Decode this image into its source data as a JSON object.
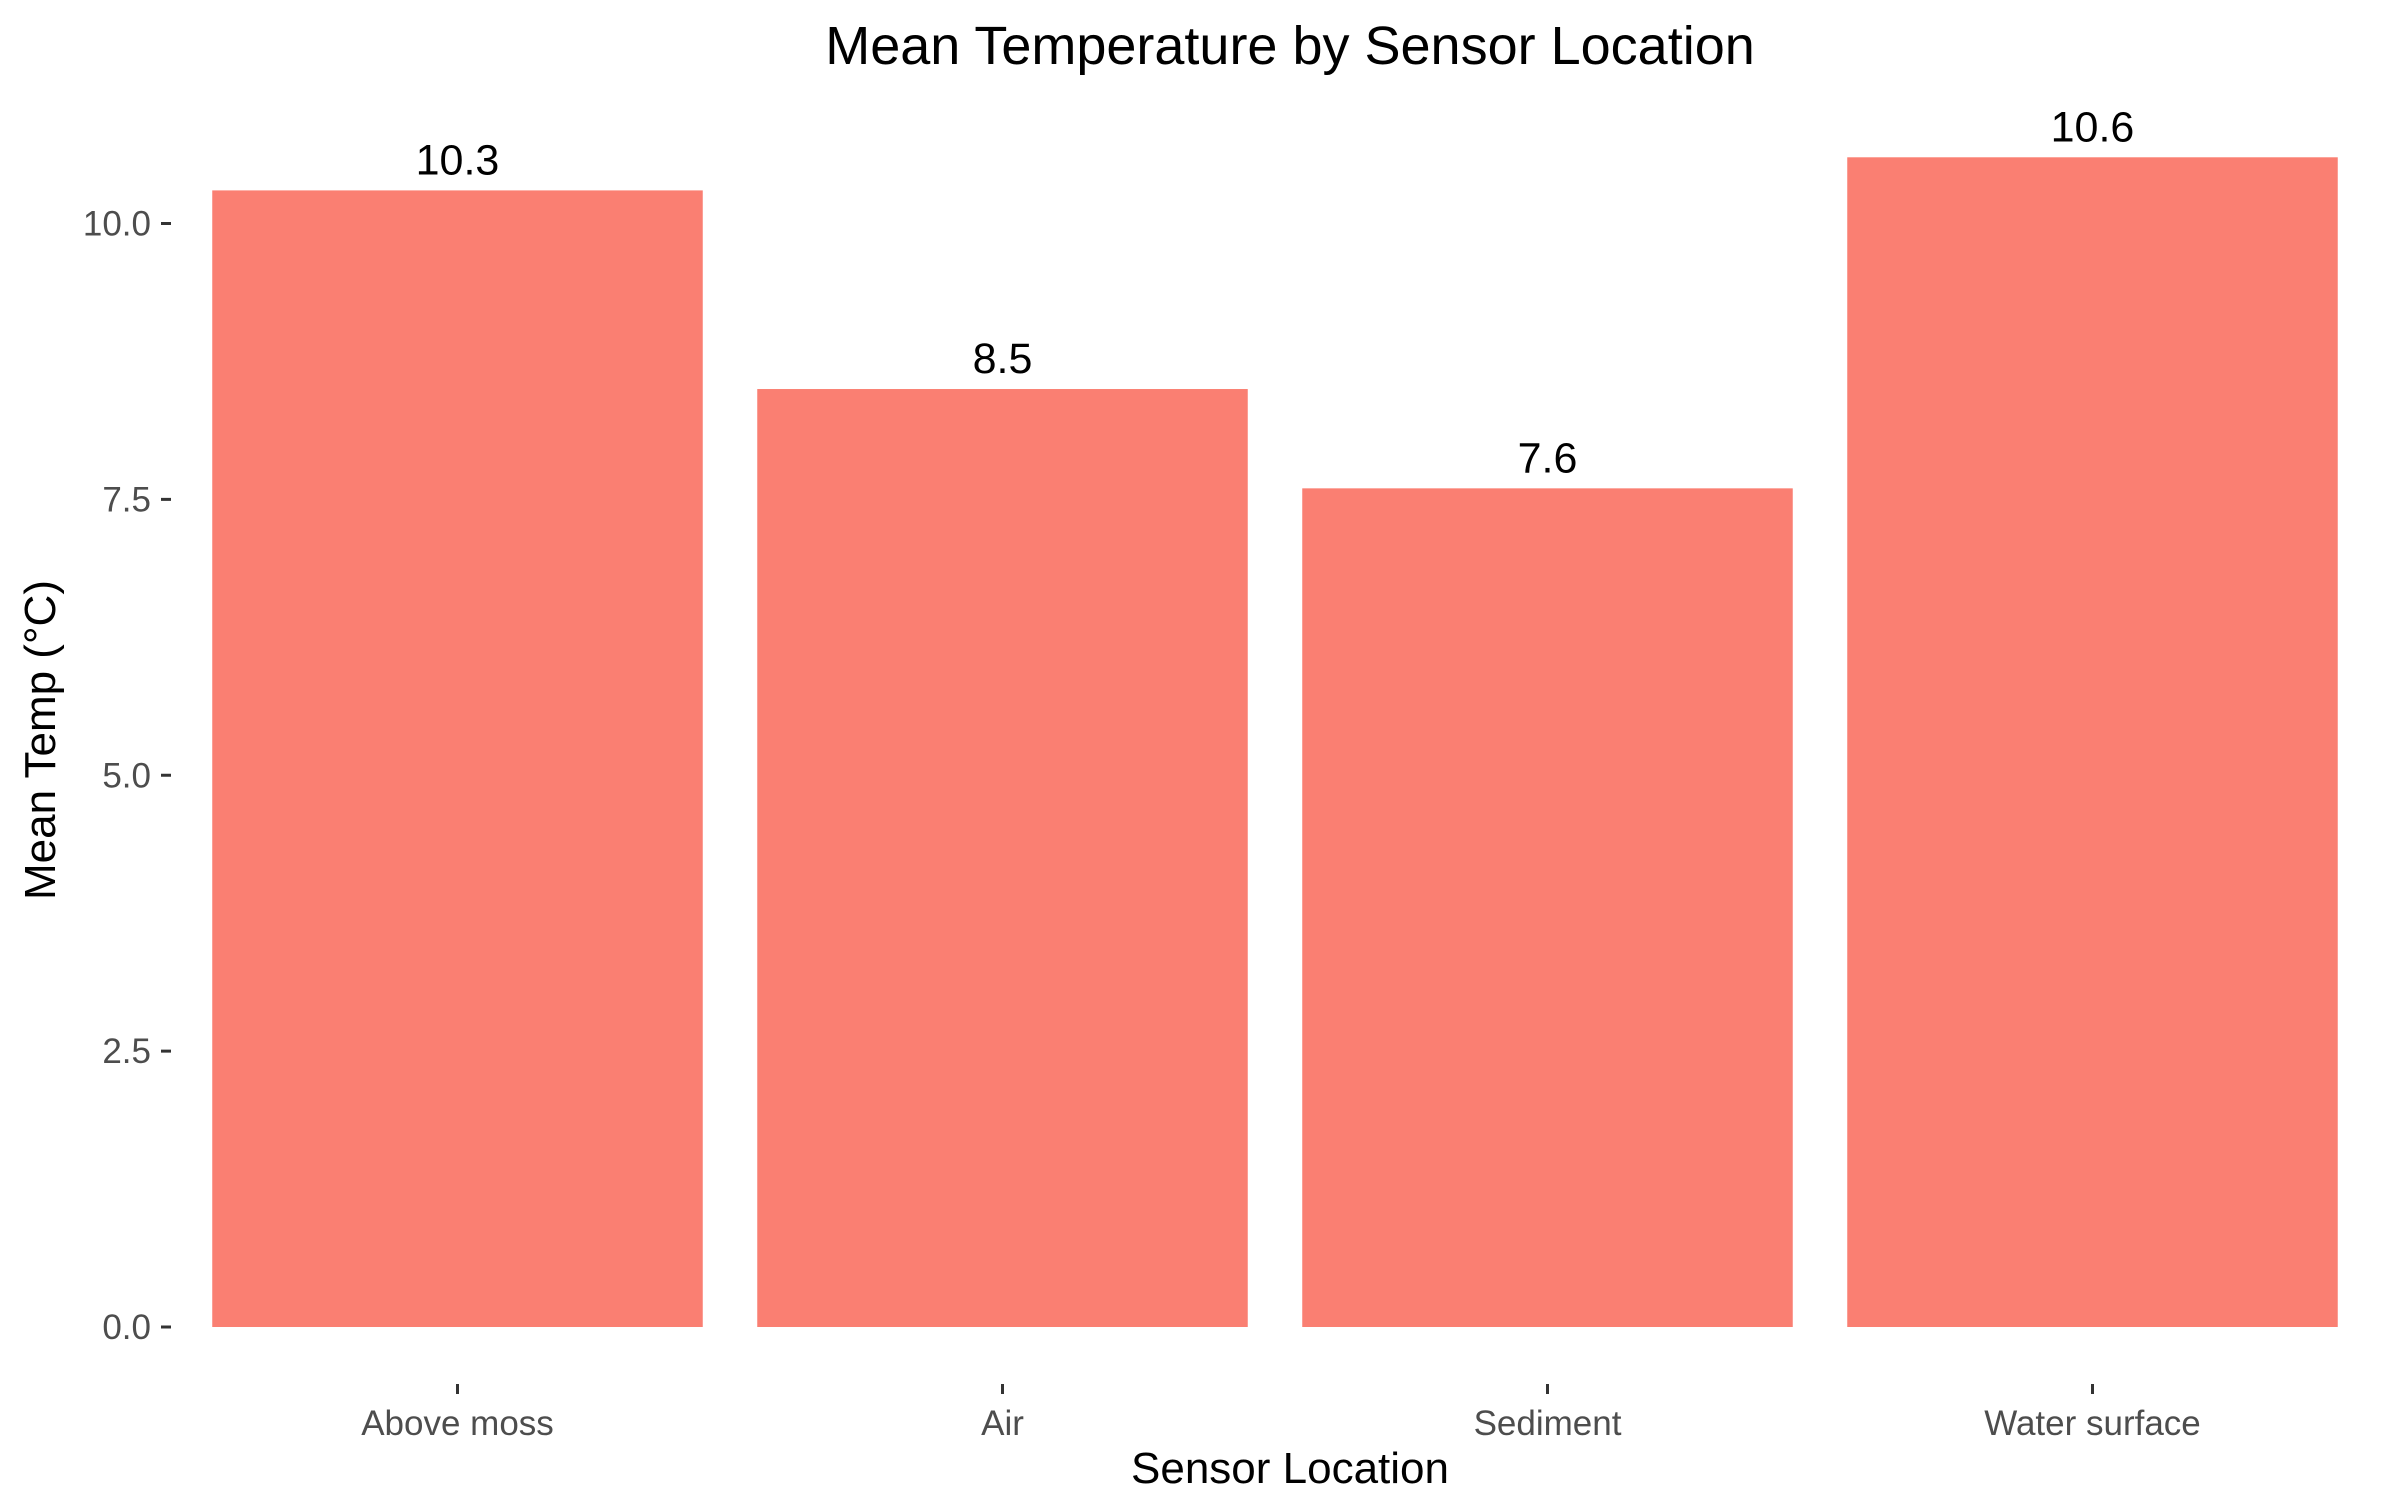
{
  "chart_data": {
    "type": "bar",
    "title": "Mean Temperature by Sensor Location",
    "xlabel": "Sensor Location",
    "ylabel": "Mean Temp (°C)",
    "categories": [
      "Above moss",
      "Air",
      "Sediment",
      "Water surface"
    ],
    "values": [
      10.3,
      8.5,
      7.6,
      10.6
    ],
    "data_labels": [
      "10.3",
      "8.5",
      "7.6",
      "10.6"
    ],
    "y_ticks": [
      0,
      2.5,
      5,
      7.5,
      10
    ],
    "y_tick_labels": [
      "0.0",
      "2.5",
      "5.0",
      "7.5",
      "10.0"
    ],
    "ylim": [
      0,
      10.9
    ],
    "bar_color": "#fa7f72",
    "grid": false,
    "legend": "none"
  }
}
